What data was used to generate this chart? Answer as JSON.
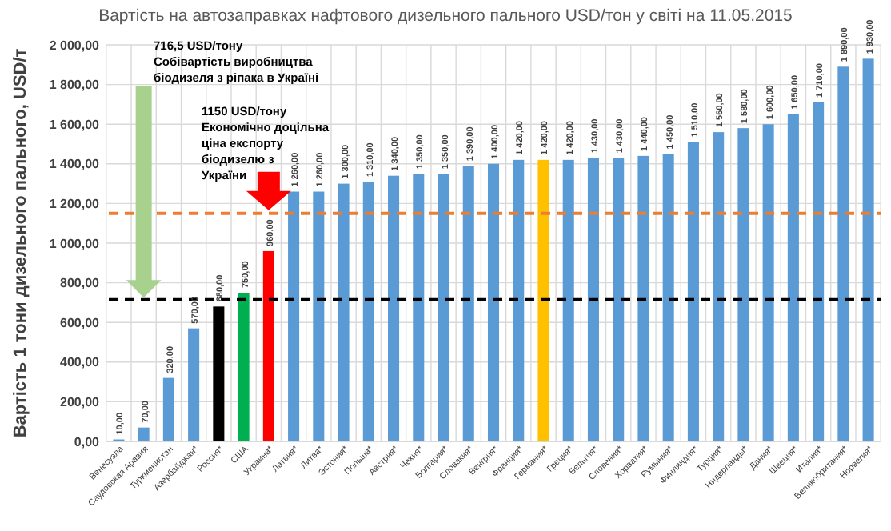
{
  "chart_data": {
    "type": "bar",
    "title": "Вартість на автозаправках нафтового дизельного пального USD/тон у світі на 11.05.2015",
    "ylabel": "Вартість 1 тони дизельного пального,  USD/т",
    "categories": [
      "Венесуэла",
      "Саудовская Аравия",
      "Туркменистан",
      "Азербайджан*",
      "Россия*",
      "США",
      "Украина*",
      "Латвия*",
      "Литва*",
      "Эстония*",
      "Польша*",
      "Австрия*",
      "Чехия*",
      "Болгария*",
      "Словакия*",
      "Венгрия*",
      "Франция*",
      "Германия*",
      "Греция*",
      "Бельгия*",
      "Словения*",
      "Хорватия*",
      "Румыния*",
      "Финляндия*",
      "Турция*",
      "Нидерланды*",
      "Дания*",
      "Швеция*",
      "Италия*",
      "Великобритания*",
      "Норвегия*"
    ],
    "values": [
      10,
      70,
      320,
      570,
      680,
      750,
      960,
      1260,
      1260,
      1300,
      1310,
      1340,
      1350,
      1350,
      1390,
      1400,
      1420,
      1420,
      1420,
      1430,
      1430,
      1440,
      1450,
      1510,
      1560,
      1580,
      1600,
      1650,
      1710,
      1890,
      1930
    ],
    "value_labels": [
      "10,00",
      "70,00",
      "320,00",
      "570,00",
      "680,00",
      "750,00",
      "960,00",
      "1 260,00",
      "1 260,00",
      "1 300,00",
      "1 310,00",
      "1 340,00",
      "1 350,00",
      "1 350,00",
      "1 390,00",
      "1 400,00",
      "1 420,00",
      "1 420,00",
      "1 420,00",
      "1 430,00",
      "1 430,00",
      "1 440,00",
      "1 450,00",
      "1 510,00",
      "1 560,00",
      "1 580,00",
      "1 600,00",
      "1 650,00",
      "1 710,00",
      "1 890,00",
      "1 930,00"
    ],
    "colors": [
      "#5b9bd5",
      "#5b9bd5",
      "#5b9bd5",
      "#5b9bd5",
      "#000000",
      "#00b050",
      "#ff0000",
      "#5b9bd5",
      "#5b9bd5",
      "#5b9bd5",
      "#5b9bd5",
      "#5b9bd5",
      "#5b9bd5",
      "#5b9bd5",
      "#5b9bd5",
      "#5b9bd5",
      "#5b9bd5",
      "#ffc000",
      "#5b9bd5",
      "#5b9bd5",
      "#5b9bd5",
      "#5b9bd5",
      "#5b9bd5",
      "#5b9bd5",
      "#5b9bd5",
      "#5b9bd5",
      "#5b9bd5",
      "#5b9bd5",
      "#5b9bd5",
      "#5b9bd5",
      "#5b9bd5"
    ],
    "ylim": [
      0,
      2000
    ],
    "yticks": [
      {
        "value": 0,
        "label": "0,00"
      },
      {
        "value": 200,
        "label": "200,00"
      },
      {
        "value": 400,
        "label": "400,00"
      },
      {
        "value": 600,
        "label": "600,00"
      },
      {
        "value": 800,
        "label": "800,00"
      },
      {
        "value": 1000,
        "label": "1 000,00"
      },
      {
        "value": 1200,
        "label": "1 200,00"
      },
      {
        "value": 1400,
        "label": "1 400,00"
      },
      {
        "value": 1600,
        "label": "1 600,00"
      },
      {
        "value": 1800,
        "label": "1 800,00"
      },
      {
        "value": 2000,
        "label": "2 000,00"
      }
    ],
    "grid": true,
    "ref_lines": [
      {
        "axis": "y",
        "value": 716.5,
        "color": "#000000",
        "line_style": "dashed"
      },
      {
        "axis": "y",
        "value": 1150,
        "color": "#ed7d31",
        "line_style": "dashed"
      }
    ],
    "annotations": [
      "716,5 USD/тону Собівартість виробництва біодизеля з ріпака в Україні",
      "1150 USD/тону Економічно доцільна ціна експорту біодизелю з України"
    ]
  }
}
